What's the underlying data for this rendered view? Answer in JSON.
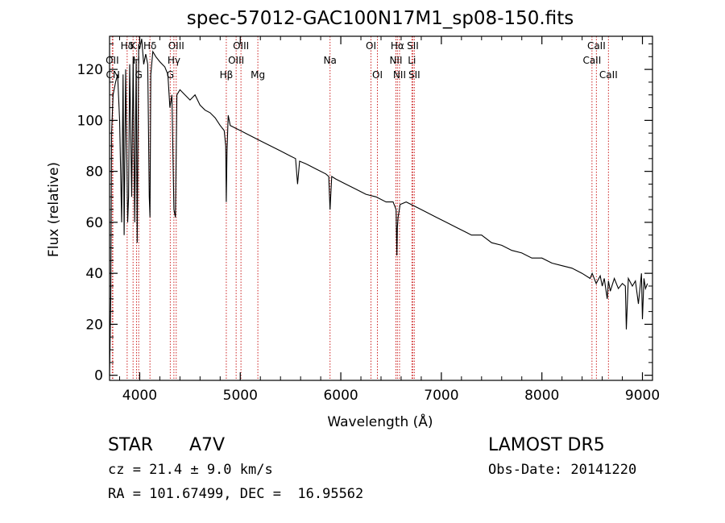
{
  "chart_data": {
    "type": "line",
    "title": "spec-57012-GAC100N17M1_sp08-150.fits",
    "xlabel": "Wavelength (Å)",
    "ylabel": "Flux (relative)",
    "xlim": [
      3700,
      9100
    ],
    "ylim": [
      -2,
      133
    ],
    "xticks": [
      4000,
      5000,
      6000,
      7000,
      8000,
      9000
    ],
    "yticks": [
      0,
      20,
      40,
      60,
      80,
      100,
      120
    ],
    "grid": false,
    "legend": "none",
    "colors": {
      "spectrum": "#000000",
      "lines": "#cc2222",
      "axes": "#000000"
    },
    "series": [
      {
        "x": [
          3700,
          3712,
          3720,
          3735,
          3760,
          3780,
          3800,
          3820,
          3835,
          3845,
          3860,
          3880,
          3889,
          3900,
          3920,
          3935,
          3950,
          3965,
          3975,
          3990,
          4000,
          4020,
          4040,
          4060,
          4080,
          4095,
          4102,
          4110,
          4130,
          4160,
          4200,
          4250,
          4280,
          4300,
          4320,
          4340,
          4355,
          4370,
          4400,
          4450,
          4500,
          4550,
          4600,
          4650,
          4700,
          4750,
          4800,
          4840,
          4855,
          4861,
          4868,
          4880,
          4900,
          4950,
          5000,
          5100,
          5200,
          5300,
          5400,
          5500,
          5550,
          5570,
          5590,
          5650,
          5750,
          5850,
          5880,
          5893,
          5910,
          5950,
          6050,
          6150,
          6250,
          6350,
          6450,
          6520,
          6550,
          6558,
          6563,
          6570,
          6590,
          6650,
          6750,
          6850,
          6950,
          7050,
          7150,
          7250,
          7300,
          7400,
          7500,
          7600,
          7700,
          7800,
          7900,
          8000,
          8100,
          8200,
          8300,
          8400,
          8480,
          8500,
          8540,
          8580,
          8600,
          8620,
          8650,
          8662,
          8680,
          8720,
          8760,
          8800,
          8830,
          8840,
          8860,
          8900,
          8930,
          8960,
          8990,
          9000,
          9015,
          9030,
          9050
        ],
        "y": [
          0,
          30,
          95,
          110,
          115,
          118,
          100,
          60,
          118,
          55,
          120,
          60,
          70,
          122,
          70,
          125,
          60,
          124,
          52,
          130,
          128,
          132,
          122,
          126,
          122,
          70,
          62,
          118,
          127,
          125,
          123,
          121,
          118,
          105,
          110,
          65,
          62,
          110,
          112,
          110,
          108,
          110,
          106,
          104,
          103,
          101,
          98,
          96,
          90,
          68,
          88,
          102,
          98,
          97,
          96,
          94,
          92,
          90,
          88,
          86,
          85,
          75,
          84,
          83,
          81,
          79,
          78,
          65,
          78,
          77,
          75,
          73,
          71,
          70,
          68,
          68,
          65,
          47,
          58,
          62,
          67,
          68,
          66,
          64,
          62,
          60,
          58,
          56,
          55,
          55,
          52,
          51,
          49,
          48,
          46,
          46,
          44,
          43,
          42,
          40,
          38,
          40,
          36,
          39,
          35,
          38,
          30,
          37,
          33,
          38,
          34,
          36,
          35,
          18,
          38,
          35,
          37,
          28,
          40,
          22,
          38,
          34,
          36
        ]
      }
    ],
    "line_markers": [
      {
        "label": "Hδ",
        "x": 3875,
        "row": 0
      },
      {
        "label": "OII",
        "x": 3727,
        "row": 1
      },
      {
        "label": "CN",
        "x": 3733,
        "row": 2
      },
      {
        "label": "K",
        "x": 3934,
        "row": 0
      },
      {
        "label": "H",
        "x": 3968,
        "row": 1
      },
      {
        "label": "G",
        "x": 3990,
        "row": 2
      },
      {
        "label": "Hδ",
        "x": 4102,
        "row": 0
      },
      {
        "label": "Hγ",
        "x": 4340,
        "row": 1
      },
      {
        "label": "OIII",
        "x": 4363,
        "row": 0
      },
      {
        "label": "G",
        "x": 4304,
        "row": 2
      },
      {
        "label": "Hβ",
        "x": 4861,
        "row": 2
      },
      {
        "label": "OIII",
        "x": 4959,
        "row": 1
      },
      {
        "label": "OIII",
        "x": 5007,
        "row": 0
      },
      {
        "label": "Mg",
        "x": 5175,
        "row": 2
      },
      {
        "label": "Na",
        "x": 5893,
        "row": 1
      },
      {
        "label": "OI",
        "x": 6300,
        "row": 0
      },
      {
        "label": "OI",
        "x": 6364,
        "row": 2
      },
      {
        "label": "NII",
        "x": 6548,
        "row": 1
      },
      {
        "label": "Hα",
        "x": 6563,
        "row": 0
      },
      {
        "label": "NII",
        "x": 6584,
        "row": 2
      },
      {
        "label": "Li",
        "x": 6707,
        "row": 1
      },
      {
        "label": "SII",
        "x": 6716,
        "row": 0
      },
      {
        "label": "SII",
        "x": 6731,
        "row": 2
      },
      {
        "label": "CaII",
        "x": 8498,
        "row": 1
      },
      {
        "label": "CaII",
        "x": 8542,
        "row": 0
      },
      {
        "label": "CaII",
        "x": 8662,
        "row": 2
      }
    ]
  },
  "info": {
    "object_class": "STAR",
    "subclass": "A7V",
    "survey": "LAMOST DR5",
    "cz": "cz = 21.4 ± 9.0 km/s",
    "obs_date": "Obs-Date: 20141220",
    "radec": "RA = 101.67499, DEC =  16.95562"
  }
}
